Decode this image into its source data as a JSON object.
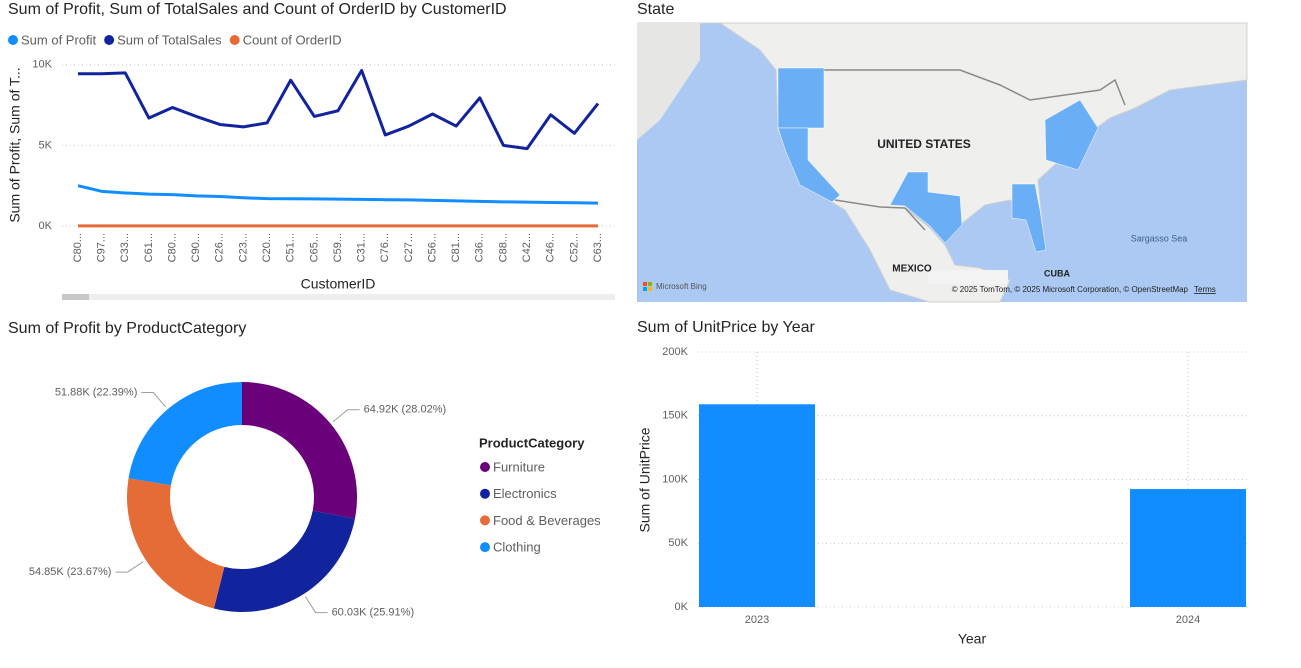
{
  "chart_data": [
    {
      "type": "line",
      "title": "Sum of Profit, Sum of TotalSales and Count of OrderID by CustomerID",
      "x_label": "CustomerID",
      "y_label": "Sum of Profit, Sum of T...",
      "categories": [
        "C80...",
        "C97...",
        "C33...",
        "C61...",
        "C80...",
        "C90...",
        "C26...",
        "C23...",
        "C20...",
        "C51...",
        "C65...",
        "C59...",
        "C31...",
        "C76...",
        "C27...",
        "C56...",
        "C81...",
        "C36...",
        "C88...",
        "C42...",
        "C46...",
        "C52...",
        "C63..."
      ],
      "series": [
        {
          "name": "Sum of Profit",
          "color": "#118DFF",
          "values": [
            2500,
            2150,
            2050,
            1980,
            1950,
            1870,
            1830,
            1750,
            1700,
            1690,
            1680,
            1670,
            1650,
            1630,
            1620,
            1590,
            1560,
            1530,
            1500,
            1480,
            1460,
            1440,
            1420
          ]
        },
        {
          "name": "Sum of TotalSales",
          "color": "#12239E",
          "values": [
            9450,
            9450,
            9500,
            6700,
            7350,
            6800,
            6300,
            6150,
            6400,
            9050,
            6800,
            7150,
            9650,
            5650,
            6200,
            6950,
            6200,
            7950,
            5000,
            4800,
            6900,
            5750,
            7600
          ]
        },
        {
          "name": "Count of OrderID",
          "color": "#E66C37",
          "values": [
            4,
            4,
            4,
            4,
            4,
            4,
            4,
            4,
            4,
            4,
            4,
            4,
            4,
            4,
            4,
            4,
            4,
            4,
            4,
            4,
            4,
            4,
            4
          ]
        }
      ],
      "ylim": [
        0,
        10300
      ],
      "yticks": [
        {
          "value": 0,
          "label": "0K"
        },
        {
          "value": 5000,
          "label": "5K"
        },
        {
          "value": 10000,
          "label": "10K"
        }
      ],
      "grid": true
    },
    {
      "type": "map",
      "title": "State",
      "labels": [
        "UNITED STATES",
        "MEXICO",
        "CUBA",
        "Sargasso Sea"
      ],
      "logo": "Microsoft Bing",
      "attribution": "© 2025 TomTom, © 2025 Microsoft Corporation, © OpenStreetMap",
      "terms": "Terms"
    },
    {
      "type": "pie",
      "title": "Sum of Profit by ProductCategory",
      "legend_title": "ProductCategory",
      "categories": [
        "Furniture",
        "Electronics",
        "Food & Beverages",
        "Clothing"
      ],
      "values": [
        64920,
        60030,
        54850,
        51880
      ],
      "value_labels": [
        "64.92K (28.02%)",
        "60.03K (25.91%)",
        "54.85K (23.67%)",
        "51.88K (22.39%)"
      ],
      "colors": [
        "#6B007B",
        "#12239E",
        "#E66C37",
        "#118DFF"
      ]
    },
    {
      "type": "bar",
      "title": "Sum of UnitPrice by Year",
      "x_label": "Year",
      "y_label": "Sum of UnitPrice",
      "categories": [
        "2023",
        "2024"
      ],
      "values": [
        159000,
        92500
      ],
      "color": "#118DFF",
      "ylim": [
        0,
        200000
      ],
      "yticks": [
        {
          "value": 0,
          "label": "0K"
        },
        {
          "value": 50000,
          "label": "50K"
        },
        {
          "value": 100000,
          "label": "100K"
        },
        {
          "value": 150000,
          "label": "150K"
        },
        {
          "value": 200000,
          "label": "200K"
        }
      ],
      "grid": true
    }
  ]
}
